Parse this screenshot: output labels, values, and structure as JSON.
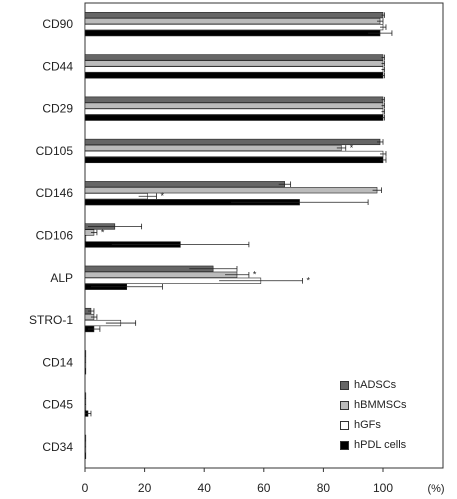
{
  "chart_data": {
    "type": "bar",
    "orientation": "horizontal",
    "categories": [
      "CD90",
      "CD44",
      "CD29",
      "CD105",
      "CD146",
      "CD106",
      "ALP",
      "STRO-1",
      "CD14",
      "CD45",
      "CD34"
    ],
    "series": [
      {
        "name": "hADSCs",
        "color": "#666666",
        "values": [
          100,
          100,
          100,
          99,
          67,
          10,
          43,
          2,
          0,
          0,
          0
        ],
        "errors": [
          0.5,
          0.5,
          0.5,
          1,
          2,
          9,
          8,
          1,
          0,
          0,
          0
        ],
        "stars": [
          false,
          false,
          false,
          false,
          false,
          false,
          false,
          false,
          false,
          false,
          false
        ]
      },
      {
        "name": "hBMMSCs",
        "color": "#bbbbbb",
        "values": [
          99,
          100,
          100,
          86,
          98,
          3,
          51,
          3,
          0,
          0,
          0
        ],
        "errors": [
          1,
          0.5,
          0.5,
          1.5,
          1.5,
          1,
          4,
          1,
          0,
          0,
          0
        ],
        "stars": [
          false,
          false,
          false,
          true,
          false,
          true,
          true,
          false,
          false,
          false,
          false
        ]
      },
      {
        "name": "hGFs",
        "color": "#ffffff",
        "values": [
          100,
          100,
          100,
          100,
          21,
          0,
          59,
          12,
          0,
          0,
          0
        ],
        "errors": [
          1,
          0.5,
          0.5,
          1,
          3,
          0,
          14,
          5,
          0,
          0,
          0
        ],
        "stars": [
          false,
          false,
          false,
          false,
          true,
          false,
          true,
          false,
          false,
          false,
          false
        ]
      },
      {
        "name": "hPDL cells",
        "color": "#000000",
        "values": [
          99,
          100,
          100,
          100,
          72,
          32,
          14,
          3,
          0,
          1,
          0
        ],
        "errors": [
          4,
          0.5,
          0.5,
          1,
          23,
          23,
          12,
          2,
          0,
          1,
          0
        ],
        "stars": [
          false,
          false,
          false,
          false,
          false,
          false,
          false,
          false,
          false,
          false,
          false
        ]
      }
    ],
    "star_symbol": "*",
    "xlim": [
      0,
      110
    ],
    "xticks": [
      "0",
      "20",
      "40",
      "60",
      "80",
      "100"
    ],
    "xunit": "(%)",
    "legend": [
      "hADSCs",
      "hBMMSCs",
      "hGFs",
      "hPDL cells"
    ],
    "legend_position": "bottom-right"
  }
}
